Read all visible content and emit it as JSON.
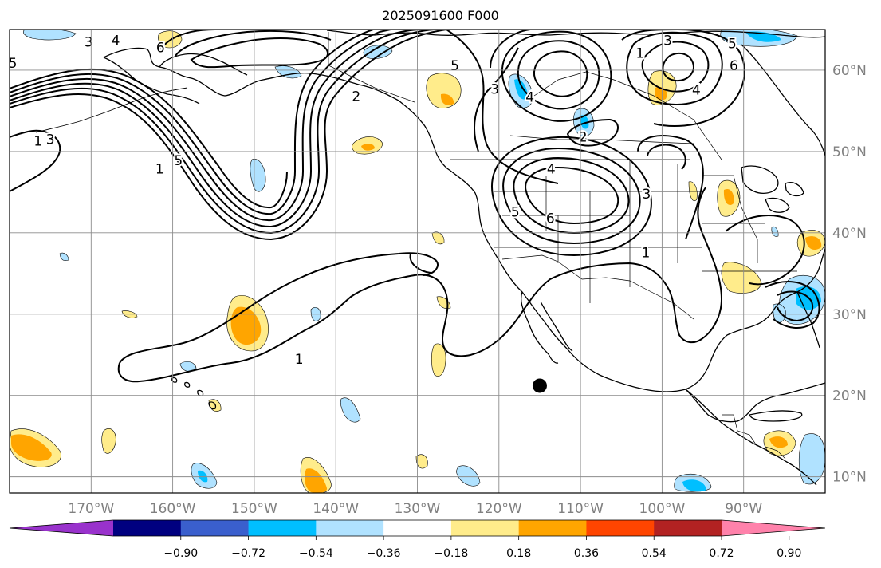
{
  "title": "2025091600 F000",
  "map": {
    "lon_range": [
      -180,
      -80
    ],
    "lat_range": [
      8,
      65
    ],
    "lon_labels": [
      "170°W",
      "160°W",
      "150°W",
      "140°W",
      "130°W",
      "120°W",
      "110°W",
      "100°W",
      "90°W"
    ],
    "lat_labels": [
      "60°N",
      "50°N",
      "40°N",
      "30°N",
      "20°N",
      "10°N"
    ],
    "grid": true,
    "marker": {
      "name": "storm-center-dot",
      "lon": -115,
      "lat": 21.2
    }
  },
  "contour_labels": [
    {
      "text": "3",
      "lon": -170.3,
      "lat": 63.5
    },
    {
      "text": "4",
      "lon": -167,
      "lat": 63.7
    },
    {
      "text": "6",
      "lon": -161.5,
      "lat": 62.8
    },
    {
      "text": "5",
      "lon": -179.6,
      "lat": 60.9
    },
    {
      "text": "1",
      "lon": -176.5,
      "lat": 51.3
    },
    {
      "text": "3",
      "lon": -175,
      "lat": 51.5
    },
    {
      "text": "1",
      "lon": -161.6,
      "lat": 47.9
    },
    {
      "text": "5",
      "lon": -159.3,
      "lat": 48.9
    },
    {
      "text": "1",
      "lon": -144.5,
      "lat": 24.5
    },
    {
      "text": "2",
      "lon": -137.5,
      "lat": 56.8
    },
    {
      "text": "5",
      "lon": -125.4,
      "lat": 60.6
    },
    {
      "text": "3",
      "lon": -120.5,
      "lat": 57.7
    },
    {
      "text": "4",
      "lon": -116.2,
      "lat": 56.7
    },
    {
      "text": "2",
      "lon": -109.7,
      "lat": 51.8
    },
    {
      "text": "1",
      "lon": -102.7,
      "lat": 62.1
    },
    {
      "text": "3",
      "lon": -99.3,
      "lat": 63.7
    },
    {
      "text": "5",
      "lon": -91.4,
      "lat": 63.3
    },
    {
      "text": "6",
      "lon": -91.2,
      "lat": 60.6
    },
    {
      "text": "4",
      "lon": -95.8,
      "lat": 57.6
    },
    {
      "text": "4",
      "lon": -113.6,
      "lat": 47.9
    },
    {
      "text": "6",
      "lon": -113.7,
      "lat": 41.8
    },
    {
      "text": "5",
      "lon": -118,
      "lat": 42.6
    },
    {
      "text": "3",
      "lon": -101.9,
      "lat": 44.8
    },
    {
      "text": "1",
      "lon": -102,
      "lat": 37.6
    }
  ],
  "colorbar": {
    "colors": [
      "#9932cc",
      "#000080",
      "#3a5fcd",
      "#00bfff",
      "#b0e2ff",
      "#ffffff",
      "#ffec8b",
      "#ffa500",
      "#ff4500",
      "#b22222",
      "#ff82ab"
    ],
    "tick_labels": [
      "−0.90",
      "−0.72",
      "−0.54",
      "−0.36",
      "−0.18",
      "0.18",
      "0.36",
      "0.54",
      "0.72",
      "0.90"
    ]
  }
}
